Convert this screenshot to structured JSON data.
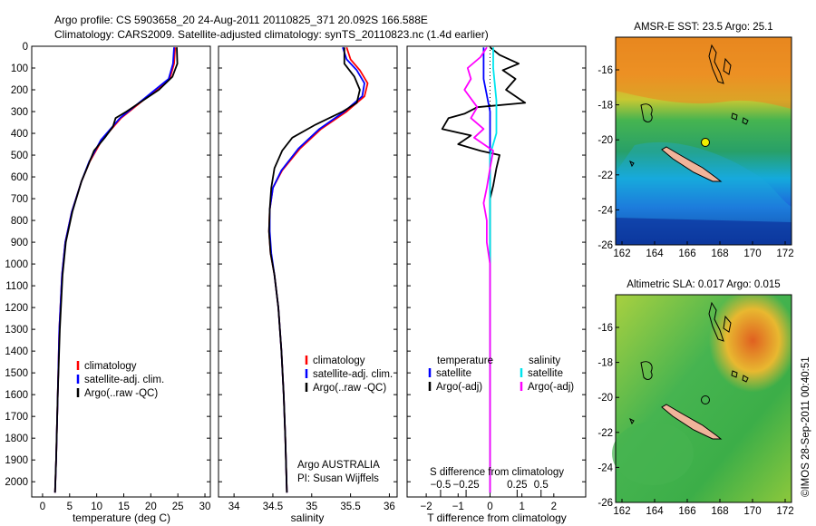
{
  "title_line1": "Argo profile: CS 5903658_20 24-Aug-2011 20110825_371 20.092S 166.588E",
  "title_line2": "Climatology: CARS2009. Satellite-adjusted climatology: synTS_20110823.nc (1.4d earlier)",
  "colors": {
    "climatology": "#ff0000",
    "satellite": "#0000ff",
    "argo": "#000000",
    "sat_s": "#00e5ee",
    "argo_s": "#ff00ff"
  },
  "chart_data": [
    {
      "type": "line",
      "id": "temperature",
      "xlabel": "temperature (deg C)",
      "xlim": [
        -2,
        31
      ],
      "ylim": [
        2070,
        0
      ],
      "xticks": [
        0,
        5,
        10,
        15,
        20,
        25,
        30
      ],
      "xtick_labels": [
        "0",
        "5",
        "10",
        "15",
        "20",
        "25",
        "30"
      ],
      "yticks": [
        0,
        100,
        200,
        300,
        400,
        500,
        600,
        700,
        800,
        900,
        1000,
        1100,
        1200,
        1300,
        1400,
        1500,
        1600,
        1700,
        1800,
        1900,
        2000
      ],
      "ytick_labels": [
        "0",
        "100",
        "200",
        "300",
        "400",
        "500",
        "600",
        "700",
        "800",
        "900",
        "1000",
        "1100",
        "1200",
        "1300",
        "1400",
        "1500",
        "1600",
        "1700",
        "1800",
        "1900",
        "2000"
      ],
      "legend": [
        "climatology",
        "satellite-adj. clim.",
        "Argo(..raw -QC)"
      ],
      "series": [
        {
          "name": "climatology",
          "color": "#ff0000",
          "points": [
            [
              24.5,
              5
            ],
            [
              24.3,
              80
            ],
            [
              23.5,
              150
            ],
            [
              21,
              200
            ],
            [
              18,
              260
            ],
            [
              14.5,
              330
            ],
            [
              11,
              430
            ],
            [
              8.7,
              530
            ],
            [
              7.2,
              620
            ],
            [
              5.4,
              760
            ],
            [
              4.2,
              900
            ],
            [
              3.6,
              1050
            ],
            [
              3.1,
              1300
            ],
            [
              2.8,
              1600
            ],
            [
              2.5,
              1900
            ],
            [
              2.3,
              2050
            ]
          ]
        },
        {
          "name": "satellite-adj. clim.",
          "color": "#0000ff",
          "points": [
            [
              24.3,
              5
            ],
            [
              24.1,
              80
            ],
            [
              23.3,
              150
            ],
            [
              20.8,
              200
            ],
            [
              17.8,
              260
            ],
            [
              14.3,
              330
            ],
            [
              10.8,
              430
            ],
            [
              8.6,
              530
            ],
            [
              7.2,
              620
            ],
            [
              5.4,
              760
            ],
            [
              4.2,
              900
            ],
            [
              3.6,
              1050
            ],
            [
              3.1,
              1300
            ],
            [
              2.8,
              1600
            ],
            [
              2.5,
              1900
            ],
            [
              2.3,
              2050
            ]
          ]
        },
        {
          "name": "Argo(..raw -QC)",
          "color": "#000000",
          "points": [
            [
              24.8,
              5
            ],
            [
              24.9,
              80
            ],
            [
              24,
              140
            ],
            [
              21.5,
              200
            ],
            [
              18.5,
              250
            ],
            [
              15.5,
              300
            ],
            [
              13.5,
              330
            ],
            [
              13,
              370
            ],
            [
              11.5,
              420
            ],
            [
              9.5,
              480
            ],
            [
              8.2,
              560
            ],
            [
              7.2,
              620
            ],
            [
              5.5,
              760
            ],
            [
              4.3,
              900
            ],
            [
              3.7,
              1050
            ],
            [
              3.2,
              1300
            ],
            [
              2.8,
              1600
            ],
            [
              2.5,
              1900
            ],
            [
              2.3,
              2050
            ]
          ]
        }
      ]
    },
    {
      "type": "line",
      "id": "salinity",
      "xlabel": "salinity",
      "xlim": [
        33.8,
        36.1
      ],
      "ylim": [
        2070,
        0
      ],
      "xticks": [
        34,
        34.5,
        35,
        35.5,
        36
      ],
      "xtick_labels": [
        "34",
        "34.5",
        "35",
        "35.5",
        "36"
      ],
      "legend": [
        "climatology",
        "satellite-adj. clim.",
        "Argo(..raw -QC)"
      ],
      "annotation": [
        "Argo AUSTRALIA",
        "PI: Susan Wijffels"
      ],
      "series": [
        {
          "name": "climatology",
          "color": "#ff0000",
          "points": [
            [
              35.45,
              5
            ],
            [
              35.5,
              60
            ],
            [
              35.62,
              110
            ],
            [
              35.72,
              170
            ],
            [
              35.68,
              230
            ],
            [
              35.45,
              300
            ],
            [
              35.12,
              380
            ],
            [
              34.85,
              470
            ],
            [
              34.62,
              570
            ],
            [
              34.5,
              650
            ],
            [
              34.46,
              750
            ],
            [
              34.45,
              850
            ],
            [
              34.47,
              950
            ],
            [
              34.52,
              1050
            ],
            [
              34.57,
              1200
            ],
            [
              34.61,
              1400
            ],
            [
              34.64,
              1600
            ],
            [
              34.66,
              1800
            ],
            [
              34.68,
              2050
            ]
          ]
        },
        {
          "name": "satellite-adj. clim.",
          "color": "#0000ff",
          "points": [
            [
              35.4,
              5
            ],
            [
              35.45,
              60
            ],
            [
              35.58,
              110
            ],
            [
              35.68,
              170
            ],
            [
              35.65,
              230
            ],
            [
              35.42,
              300
            ],
            [
              35.1,
              380
            ],
            [
              34.83,
              470
            ],
            [
              34.61,
              570
            ],
            [
              34.5,
              650
            ],
            [
              34.46,
              750
            ],
            [
              34.46,
              850
            ],
            [
              34.48,
              950
            ],
            [
              34.52,
              1050
            ],
            [
              34.57,
              1200
            ],
            [
              34.61,
              1400
            ],
            [
              34.64,
              1600
            ],
            [
              34.66,
              1800
            ],
            [
              34.68,
              2050
            ]
          ]
        },
        {
          "name": "Argo(..raw -QC)",
          "color": "#000000",
          "points": [
            [
              35.42,
              5
            ],
            [
              35.42,
              80
            ],
            [
              35.55,
              140
            ],
            [
              35.62,
              200
            ],
            [
              35.58,
              260
            ],
            [
              35.4,
              300
            ],
            [
              35.05,
              360
            ],
            [
              34.75,
              420
            ],
            [
              34.62,
              480
            ],
            [
              34.52,
              560
            ],
            [
              34.48,
              650
            ],
            [
              34.46,
              750
            ],
            [
              34.45,
              850
            ],
            [
              34.47,
              950
            ],
            [
              34.52,
              1050
            ],
            [
              34.57,
              1200
            ],
            [
              34.61,
              1400
            ],
            [
              34.64,
              1600
            ],
            [
              34.66,
              1800
            ],
            [
              34.68,
              2050
            ]
          ]
        }
      ]
    },
    {
      "type": "line",
      "id": "difference",
      "xlabel": "T difference from climatology",
      "xlabel2": "S difference from climatology",
      "xlim": [
        -2.6,
        3
      ],
      "ylim": [
        2070,
        0
      ],
      "xticks": [
        -2,
        -1,
        0,
        1,
        2
      ],
      "xtick_labels": [
        "−2",
        "−1",
        "0",
        "1",
        "2"
      ],
      "sticks": [
        -1.55,
        -0.75,
        0.85,
        1.6
      ],
      "stick_labels": [
        "−0.5",
        "−0.25",
        "0.25",
        "0.5"
      ],
      "legend_headers": [
        "temperature",
        "salinity"
      ],
      "legend": [
        "satellite",
        "Argo(-adj)",
        "satellite",
        "Argo(-adj)"
      ],
      "series": [
        {
          "name": "T satellite",
          "color": "#0000ff",
          "points": [
            [
              -0.2,
              5
            ],
            [
              -0.2,
              60
            ],
            [
              -0.2,
              150
            ],
            [
              0,
              300
            ],
            [
              0,
              600
            ],
            [
              0,
              1000
            ],
            [
              0,
              2050
            ]
          ]
        },
        {
          "name": "T Argo(-adj)",
          "color": "#000000",
          "points": [
            [
              0,
              5
            ],
            [
              0.3,
              40
            ],
            [
              0.9,
              80
            ],
            [
              0.4,
              110
            ],
            [
              0.8,
              150
            ],
            [
              0.5,
              200
            ],
            [
              1.1,
              260
            ],
            [
              -0.4,
              280
            ],
            [
              -0.8,
              310
            ],
            [
              -1.3,
              330
            ],
            [
              -1.5,
              380
            ],
            [
              -0.6,
              410
            ],
            [
              -1.0,
              450
            ],
            [
              -0.3,
              480
            ],
            [
              0.3,
              500
            ],
            [
              0.2,
              560
            ],
            [
              0.1,
              640
            ],
            [
              0,
              700
            ],
            [
              0,
              1000
            ],
            [
              0,
              2050
            ]
          ]
        },
        {
          "name": "S satellite",
          "color": "#00e5ee",
          "points": [
            [
              0.1,
              5
            ],
            [
              0.1,
              100
            ],
            [
              0.2,
              250
            ],
            [
              0.2,
              400
            ],
            [
              0,
              500
            ],
            [
              0,
              700
            ],
            [
              0,
              1000
            ],
            [
              0,
              2050
            ]
          ]
        },
        {
          "name": "S Argo(-adj)",
          "color": "#ff00ff",
          "points": [
            [
              -0.1,
              5
            ],
            [
              -0.3,
              50
            ],
            [
              -0.7,
              100
            ],
            [
              -0.6,
              150
            ],
            [
              -0.8,
              200
            ],
            [
              -0.4,
              280
            ],
            [
              -0.6,
              330
            ],
            [
              -0.2,
              380
            ],
            [
              -0.5,
              420
            ],
            [
              0.1,
              480
            ],
            [
              0,
              560
            ],
            [
              -0.1,
              650
            ],
            [
              -0.2,
              720
            ],
            [
              -0.1,
              800
            ],
            [
              -0.1,
              900
            ],
            [
              0,
              1000
            ],
            [
              0,
              2050
            ]
          ]
        }
      ]
    }
  ],
  "map_sst": {
    "title": "AMSR-E SST: 23.5 Argo: 25.1",
    "xticks": [
      "162",
      "164",
      "166",
      "168",
      "170",
      "172"
    ],
    "yticks": [
      "-16",
      "-18",
      "-20",
      "-22",
      "-24",
      "-26"
    ]
  },
  "map_sla": {
    "title": "Altimetric SLA: 0.017 Argo: 0.015",
    "xticks": [
      "162",
      "164",
      "166",
      "168",
      "170",
      "172"
    ],
    "yticks": [
      "-16",
      "-18",
      "-20",
      "-22",
      "-24",
      "-26"
    ]
  },
  "footer": "©IMOS 28-Sep-2011 00:40:51"
}
